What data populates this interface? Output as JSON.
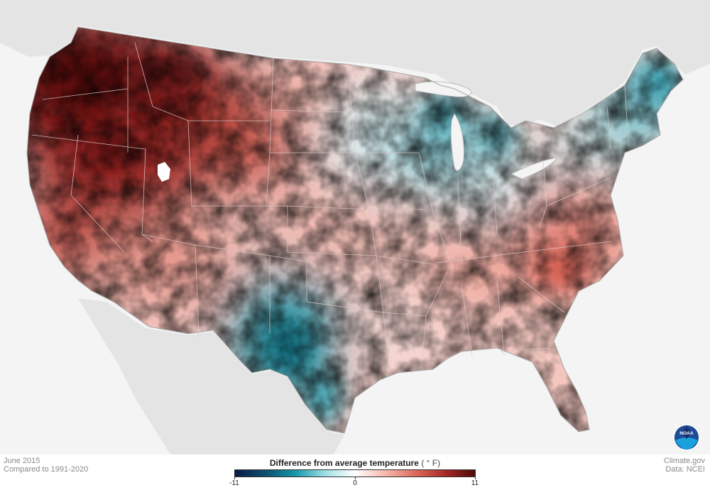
{
  "map": {
    "region": "Contiguous United States",
    "colors": {
      "water": "#f4f4f4",
      "land_outside": "#e4e4e4",
      "state_border": "#d9c0c0",
      "coast": "#b0b0b0",
      "no_data": "#ffffff"
    },
    "anomalies_F": {
      "Pacific Northwest": 9,
      "Northern Rockies": 8,
      "Great Basin": 7,
      "California": 5,
      "Southwest": 2,
      "Northern Plains": 2,
      "Central Plains": 1,
      "Texas": -3,
      "Great Lakes": -3,
      "Upper Midwest": -1,
      "Ohio Valley": 0,
      "Southeast": 3,
      "Carolinas": 4,
      "Florida": 1,
      "New England": -4,
      "New York": -2
    }
  },
  "footer": {
    "period": "June 2015",
    "baseline": "Compared to 1991-2020",
    "site": "Climate.gov",
    "source": "Data: NCEI"
  },
  "legend": {
    "title": "Difference from average temperature",
    "units": "( ° F)",
    "min": "-11",
    "zero": "0",
    "max": "11",
    "colors": [
      "#0b1a45",
      "#0c4f6d",
      "#1597a9",
      "#9ee0e6",
      "#ffffff",
      "#f6b8ad",
      "#dc6d5e",
      "#a82a26",
      "#4d0b0b"
    ]
  },
  "logo": {
    "icon": "noaa-logo-icon",
    "text": "NOAA",
    "colors": {
      "outer": "#ffffff",
      "ring": "#1f4a96",
      "wave": "#1aa1dc",
      "inner": "#16306b"
    }
  }
}
